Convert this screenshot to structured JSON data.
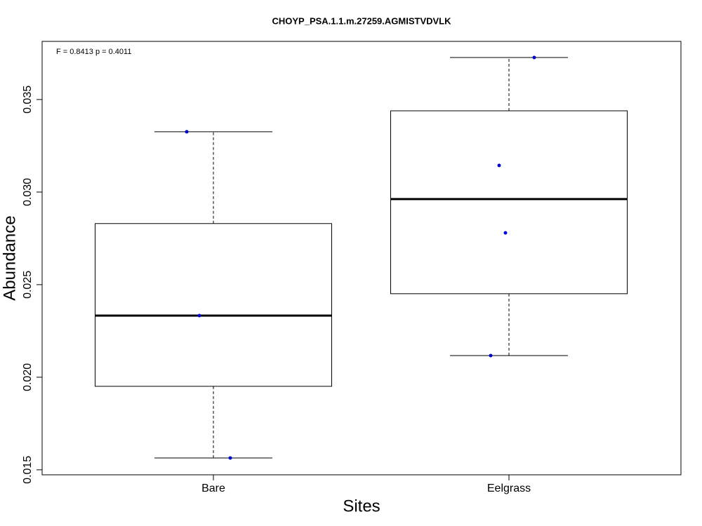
{
  "chart_data": {
    "type": "box",
    "title": "CHOYP_PSA.1.1.m.27259.AGMISTVDVLK",
    "annotation": "F = 0.8413 p = 0.4011",
    "x_label": "Sites",
    "y_label": "Abundance",
    "categories": [
      "Bare",
      "Eelgrass"
    ],
    "boxes": [
      {
        "whisker_low": 0.01564,
        "q1": 0.01951,
        "median": 0.02333,
        "q3": 0.0283,
        "whisker_high": 0.03326,
        "points": [
          0.03326,
          0.02333,
          0.01564
        ]
      },
      {
        "whisker_low": 0.02117,
        "q1": 0.02451,
        "median": 0.02962,
        "q3": 0.03439,
        "whisker_high": 0.03727,
        "points": [
          0.03727,
          0.03144,
          0.0278,
          0.02117
        ]
      }
    ],
    "point_color": "#0000cc",
    "box_color": "#000000",
    "ylim": [
      0.01473,
      0.03814
    ],
    "yticks": [
      0.015,
      {
        "value": 0.02,
        "label": "0.020"
      },
      0.025,
      {
        "value": 0.03,
        "label": "0.030"
      },
      0.035
    ]
  }
}
